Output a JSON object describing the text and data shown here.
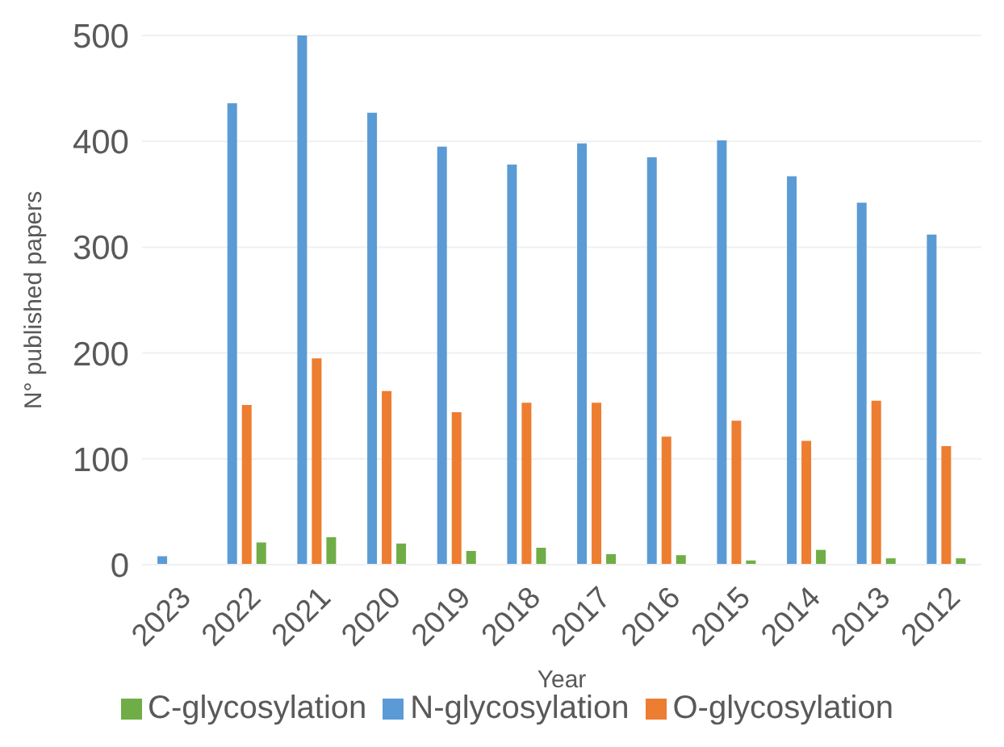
{
  "chart_data": {
    "type": "bar",
    "xlabel": "Year",
    "ylabel": "N° published papers",
    "categories": [
      "2023",
      "2022",
      "2021",
      "2020",
      "2019",
      "2018",
      "2017",
      "2016",
      "2015",
      "2014",
      "2013",
      "2012"
    ],
    "series": [
      {
        "name": "N-glycosylation",
        "color": "#5b9bd5",
        "values": [
          8,
          436,
          500,
          427,
          395,
          378,
          398,
          385,
          401,
          367,
          342,
          312
        ]
      },
      {
        "name": "O-glycosylation",
        "color": "#ed7d31",
        "values": [
          0,
          151,
          195,
          164,
          144,
          153,
          153,
          121,
          136,
          117,
          155,
          112
        ]
      },
      {
        "name": "C-glycosylation",
        "color": "#70ad47",
        "values": [
          0,
          21,
          26,
          20,
          13,
          16,
          10,
          9,
          4,
          14,
          6,
          6
        ]
      }
    ],
    "ylim": [
      0,
      500
    ],
    "yticks": [
      0,
      100,
      200,
      300,
      400,
      500
    ],
    "grid": "y",
    "legend": "bottom"
  }
}
